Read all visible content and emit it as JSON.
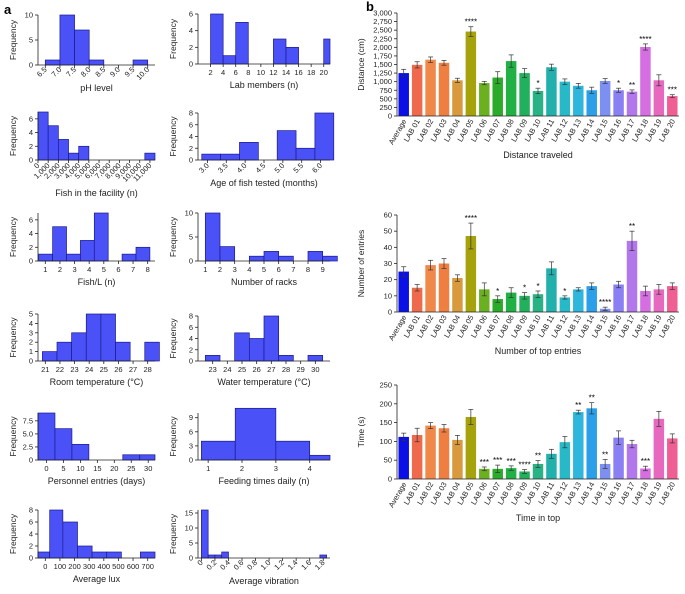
{
  "panel_labels": {
    "a": "a",
    "b": "b"
  },
  "chart_data": [
    {
      "id": "ph",
      "type": "bar",
      "title": "pH level",
      "ylabel": "Frequency",
      "xlim": [
        6.25,
        10.25
      ],
      "ylim": [
        0,
        10
      ],
      "yticks": [
        0,
        5,
        10
      ],
      "xticks": [
        6.5,
        7.0,
        7.5,
        8.0,
        8.5,
        9.0,
        9.5,
        10.0
      ],
      "xtick_labels": [
        "6.5",
        "7.0",
        "7.5",
        "8.0",
        "8.5",
        "9.0",
        "9.5",
        "10.0"
      ],
      "bins": [
        [
          6.5,
          7.0,
          1
        ],
        [
          7.0,
          7.5,
          10
        ],
        [
          7.5,
          8.0,
          7
        ],
        [
          8.0,
          8.5,
          1
        ],
        [
          8.5,
          9.0,
          0
        ],
        [
          9.0,
          9.5,
          0
        ],
        [
          9.5,
          10.0,
          1
        ]
      ]
    },
    {
      "id": "lab",
      "type": "bar",
      "title": "Lab members (n)",
      "ylabel": "Frequency",
      "xlim": [
        0,
        21
      ],
      "ylim": [
        0,
        6
      ],
      "yticks": [
        0,
        2,
        4,
        6
      ],
      "xticks": [
        2,
        4,
        6,
        8,
        10,
        12,
        14,
        16,
        18,
        20
      ],
      "xtick_labels": [
        "2",
        "4",
        "6",
        "8",
        "10",
        "12",
        "14",
        "16",
        "18",
        "20"
      ],
      "bins": [
        [
          2,
          4,
          6
        ],
        [
          4,
          6,
          1
        ],
        [
          6,
          8,
          5
        ],
        [
          8,
          10,
          0
        ],
        [
          10,
          12,
          0
        ],
        [
          12,
          14,
          3
        ],
        [
          14,
          16,
          2
        ],
        [
          16,
          18,
          0
        ],
        [
          18,
          20,
          0
        ],
        [
          20,
          21,
          3
        ]
      ]
    },
    {
      "id": "fish",
      "type": "bar",
      "title": "Fish in the facility (n)",
      "ylabel": "Frequency",
      "xlim": [
        0,
        11500
      ],
      "ylim": [
        0,
        7
      ],
      "yticks": [
        0,
        2,
        4,
        6
      ],
      "xticks": [
        0,
        1000,
        2000,
        3000,
        4000,
        5000,
        6000,
        7000,
        8000,
        9000,
        10000,
        11000
      ],
      "xtick_labels": [
        "0",
        "1,000",
        "2,000",
        "3,000",
        "4,000",
        "5,000",
        "6,000",
        "7,000",
        "8,000",
        "9,000",
        "10,000",
        "11,000"
      ],
      "bins": [
        [
          0,
          1000,
          7
        ],
        [
          1000,
          2000,
          5
        ],
        [
          2000,
          3000,
          3
        ],
        [
          3000,
          4000,
          1
        ],
        [
          4000,
          5000,
          2
        ],
        [
          5000,
          10500,
          0
        ],
        [
          10500,
          11500,
          1
        ]
      ]
    },
    {
      "id": "age",
      "type": "bar",
      "title": "Age of fish tested (months)",
      "ylabel": "Frequency",
      "xlim": [
        2.75,
        6.25
      ],
      "ylim": [
        0,
        8
      ],
      "yticks": [
        0,
        2,
        4,
        6,
        8
      ],
      "xticks": [
        3.0,
        3.5,
        4.0,
        4.5,
        5.0,
        5.5,
        6.0
      ],
      "xtick_labels": [
        "3.0",
        "3.5",
        "4.0",
        "4.5",
        "5.0",
        "5.5",
        "6.0"
      ],
      "bins": [
        [
          2.85,
          3.35,
          1
        ],
        [
          3.35,
          3.85,
          1
        ],
        [
          3.85,
          4.35,
          3
        ],
        [
          4.35,
          4.85,
          0
        ],
        [
          4.85,
          5.35,
          5
        ],
        [
          5.35,
          5.85,
          2
        ],
        [
          5.85,
          6.35,
          8
        ]
      ]
    },
    {
      "id": "fishl",
      "type": "bar",
      "title": "Fish/L (n)",
      "ylabel": "Frequency",
      "xlim": [
        0.5,
        8.5
      ],
      "ylim": [
        0,
        7
      ],
      "yticks": [
        0,
        2,
        4,
        6
      ],
      "xticks": [
        1,
        2,
        3,
        4,
        5,
        6,
        7,
        8
      ],
      "xtick_labels": [
        "1",
        "2",
        "3",
        "4",
        "5",
        "6",
        "7",
        "8"
      ],
      "bins": [
        [
          0.55,
          1.5,
          1
        ],
        [
          1.5,
          2.45,
          5
        ],
        [
          2.45,
          3.4,
          1
        ],
        [
          3.4,
          4.35,
          3
        ],
        [
          4.35,
          5.3,
          7
        ],
        [
          5.3,
          6.25,
          0
        ],
        [
          6.25,
          7.2,
          1
        ],
        [
          7.2,
          8.15,
          2
        ]
      ]
    },
    {
      "id": "racks",
      "type": "bar",
      "title": "Number of racks",
      "ylabel": "Frequency",
      "xlim": [
        0.5,
        9.5
      ],
      "ylim": [
        0,
        10
      ],
      "yticks": [
        0,
        5,
        10
      ],
      "xticks": [
        1,
        2,
        3,
        4,
        5,
        6,
        7,
        8,
        9
      ],
      "xtick_labels": [
        "1",
        "2",
        "3",
        "4",
        "5",
        "6",
        "7",
        "8",
        "9"
      ],
      "bins": [
        [
          1,
          2,
          10
        ],
        [
          2,
          3,
          3
        ],
        [
          3,
          4,
          0
        ],
        [
          4,
          5,
          1
        ],
        [
          5,
          6,
          2
        ],
        [
          6,
          7,
          1
        ],
        [
          7,
          8,
          0
        ],
        [
          8,
          9,
          2
        ],
        [
          9,
          10,
          1
        ]
      ]
    },
    {
      "id": "room",
      "type": "bar",
      "title": "Room temperature (°C)",
      "ylabel": "Frequency",
      "xlim": [
        20.5,
        28.5
      ],
      "ylim": [
        0,
        5
      ],
      "yticks": [
        0,
        1,
        2,
        3,
        4,
        5
      ],
      "xticks": [
        21,
        22,
        23,
        24,
        25,
        26,
        27,
        28
      ],
      "xtick_labels": [
        "21",
        "22",
        "23",
        "24",
        "25",
        "26",
        "27",
        "28"
      ],
      "bins": [
        [
          20.8,
          21.8,
          1
        ],
        [
          21.8,
          22.8,
          2
        ],
        [
          22.8,
          23.8,
          3
        ],
        [
          23.8,
          24.8,
          5
        ],
        [
          24.8,
          25.8,
          5
        ],
        [
          25.8,
          26.8,
          2
        ],
        [
          26.8,
          27.8,
          0
        ],
        [
          27.8,
          28.8,
          2
        ]
      ]
    },
    {
      "id": "water",
      "type": "bar",
      "title": "Water temperature (°C)",
      "ylabel": "Frequency",
      "xlim": [
        22,
        31
      ],
      "ylim": [
        0,
        8
      ],
      "yticks": [
        0,
        2,
        4,
        6,
        8
      ],
      "xticks": [
        23,
        24,
        25,
        26,
        27,
        28,
        29,
        30
      ],
      "xtick_labels": [
        "23",
        "24",
        "25",
        "26",
        "27",
        "28",
        "29",
        "30"
      ],
      "bins": [
        [
          22.5,
          23.5,
          1
        ],
        [
          23.5,
          24.5,
          0
        ],
        [
          24.5,
          25.5,
          5
        ],
        [
          25.5,
          26.5,
          4
        ],
        [
          26.5,
          27.5,
          8
        ],
        [
          27.5,
          28.5,
          1
        ],
        [
          28.5,
          29.5,
          0
        ],
        [
          29.5,
          30.5,
          1
        ]
      ]
    },
    {
      "id": "pers",
      "type": "bar",
      "title": "Personnel entries (days)",
      "ylabel": "Frequency",
      "xlim": [
        -2.5,
        32
      ],
      "ylim": [
        0,
        9
      ],
      "yticks": [
        0,
        2.5,
        5.0,
        7.5
      ],
      "ytick_labels": [
        "0",
        "2.5",
        "5.0",
        "7.5"
      ],
      "xticks": [
        0,
        5,
        10,
        15,
        20,
        25,
        30
      ],
      "xtick_labels": [
        "0",
        "5",
        "10",
        "15",
        "20",
        "25",
        "30"
      ],
      "bins": [
        [
          -2.5,
          2.5,
          9
        ],
        [
          2.5,
          7.5,
          6
        ],
        [
          7.5,
          12.5,
          3
        ],
        [
          12.5,
          22.5,
          0
        ],
        [
          22.5,
          27.5,
          1
        ],
        [
          27.5,
          32,
          1
        ]
      ]
    },
    {
      "id": "feed",
      "type": "bar",
      "title": "Feeding times daily (n)",
      "ylabel": "Frequency",
      "xlim": [
        0.7,
        4.6
      ],
      "ylim": [
        0,
        10
      ],
      "yticks": [
        0,
        3,
        6,
        9
      ],
      "xticks": [
        1,
        2,
        3,
        4
      ],
      "xtick_labels": [
        "1",
        "2",
        "3",
        "4"
      ],
      "bins": [
        [
          0.8,
          1.8,
          4
        ],
        [
          1.8,
          3.0,
          11
        ],
        [
          3.0,
          4.0,
          4
        ],
        [
          4.0,
          4.6,
          1
        ]
      ]
    },
    {
      "id": "lux",
      "type": "bar",
      "title": "Average lux",
      "ylabel": "Frequency",
      "xlim": [
        -50,
        750
      ],
      "ylim": [
        0,
        8
      ],
      "yticks": [
        0,
        2,
        4,
        6,
        8
      ],
      "xticks": [
        0,
        100,
        200,
        300,
        400,
        500,
        600,
        700
      ],
      "xtick_labels": [
        "0",
        "100",
        "200",
        "300",
        "400",
        "500",
        "600",
        "700"
      ],
      "bins": [
        [
          -50,
          30,
          1
        ],
        [
          30,
          120,
          8
        ],
        [
          120,
          220,
          6
        ],
        [
          220,
          320,
          2
        ],
        [
          320,
          420,
          1
        ],
        [
          420,
          520,
          1
        ],
        [
          520,
          650,
          0
        ],
        [
          650,
          750,
          1
        ]
      ]
    },
    {
      "id": "vib",
      "type": "bar",
      "title": "Average vibration",
      "ylabel": "Frequency",
      "xlim": [
        -0.05,
        1.9
      ],
      "ylim": [
        0,
        16
      ],
      "yticks": [
        0,
        5,
        10,
        15
      ],
      "xticks": [
        0,
        0.2,
        0.4,
        0.6,
        0.8,
        1.0,
        1.2,
        1.4,
        1.6,
        1.8
      ],
      "xtick_labels": [
        "0",
        "0.2",
        "0.4",
        "0.6",
        "0.8",
        "1.0",
        "1.2",
        "1.4",
        "1.6",
        "1.8"
      ],
      "bins": [
        [
          0,
          0.1,
          16
        ],
        [
          0.1,
          0.2,
          1
        ],
        [
          0.2,
          0.3,
          1
        ],
        [
          0.3,
          0.4,
          2
        ],
        [
          0.4,
          1.75,
          0
        ],
        [
          1.75,
          1.85,
          1
        ]
      ]
    },
    {
      "id": "dist",
      "type": "bar",
      "title": "Distance traveled",
      "ylabel": "Distance (cm)",
      "ylim": [
        0,
        3000
      ],
      "yticks": [
        0,
        250,
        500,
        750,
        1000,
        1250,
        1500,
        1750,
        2000,
        2250,
        2500,
        2750,
        3000
      ],
      "ytick_labels": [
        "0",
        "250",
        "500",
        "750",
        "1,000",
        "1,250",
        "1,500",
        "1,750",
        "2,000",
        "2,250",
        "2,500",
        "2,750",
        "3,000"
      ],
      "categories": [
        "Average",
        "LAB 01",
        "LAB 02",
        "LAB 03",
        "LAB 04",
        "LAB 05",
        "LAB 06",
        "LAB 07",
        "LAB 08",
        "LAB 09",
        "LAB 10",
        "LAB 11",
        "LAB 12",
        "LAB 13",
        "LAB 14",
        "LAB 15",
        "LAB 16",
        "LAB 17",
        "LAB 18",
        "LAB 19",
        "LAB 20"
      ],
      "values": [
        1250,
        1490,
        1640,
        1550,
        1040,
        2460,
        960,
        1120,
        1600,
        1250,
        730,
        1420,
        1000,
        880,
        750,
        1020,
        750,
        710,
        2010,
        1040,
        580
      ],
      "errors": [
        110,
        90,
        80,
        70,
        60,
        140,
        50,
        170,
        180,
        130,
        80,
        90,
        80,
        70,
        90,
        70,
        60,
        50,
        90,
        160,
        40
      ],
      "significance": [
        "",
        "",
        "",
        "",
        "",
        "****",
        "",
        "",
        "",
        "",
        "*",
        "",
        "",
        "",
        "",
        "",
        "*",
        "**",
        "****",
        "",
        "***"
      ]
    },
    {
      "id": "entries",
      "type": "bar",
      "title": "Number of top entries",
      "ylabel": "Number of entries",
      "ylim": [
        0,
        60
      ],
      "yticks": [
        0,
        10,
        20,
        30,
        40,
        50,
        60
      ],
      "ytick_labels": [
        "0",
        "10",
        "20",
        "30",
        "40",
        "50",
        "60"
      ],
      "categories": [
        "Average",
        "LAB 01",
        "LAB 02",
        "LAB 03",
        "LAB 04",
        "LAB 05",
        "LAB 06",
        "LAB 07",
        "LAB 08",
        "LAB 09",
        "LAB 10",
        "LAB 11",
        "LAB 12",
        "LAB 13",
        "LAB 14",
        "LAB 15",
        "LAB 16",
        "LAB 17",
        "LAB 18",
        "LAB 19",
        "LAB 20"
      ],
      "values": [
        25,
        15,
        29,
        30,
        21,
        47,
        14,
        8,
        12,
        10,
        11,
        27,
        9,
        14,
        16,
        2,
        17,
        44,
        13,
        14,
        16
      ],
      "errors": [
        3,
        2,
        3,
        3,
        2,
        8,
        4,
        2,
        3,
        2,
        2,
        4,
        1,
        1,
        2,
        1,
        2,
        6,
        3,
        3,
        2
      ],
      "significance": [
        "",
        "",
        "",
        "",
        "",
        "****",
        "",
        "*",
        "",
        "*",
        "*",
        "",
        "*",
        "",
        "",
        "****",
        "",
        "**",
        "",
        "",
        ""
      ]
    },
    {
      "id": "time",
      "type": "bar",
      "title": "Time in top",
      "ylabel": "Time (s)",
      "ylim": [
        0,
        250
      ],
      "yticks": [
        0,
        50,
        100,
        150,
        200,
        250
      ],
      "ytick_labels": [
        "0",
        "50",
        "100",
        "150",
        "200",
        "250"
      ],
      "categories": [
        "Average",
        "LAB 01",
        "LAB 02",
        "LAB 03",
        "LAB 04",
        "LAB 05",
        "LAB 06",
        "LAB 07",
        "LAB 08",
        "LAB 09",
        "LAB 10",
        "LAB 11",
        "LAB 12",
        "LAB 13",
        "LAB 14",
        "LAB 15",
        "LAB 16",
        "LAB 17",
        "LAB 18",
        "LAB 19",
        "LAB 20"
      ],
      "values": [
        112,
        117,
        142,
        135,
        104,
        165,
        27,
        27,
        29,
        20,
        40,
        67,
        98,
        178,
        188,
        40,
        110,
        93,
        28,
        160,
        108
      ],
      "errors": [
        10,
        18,
        8,
        10,
        12,
        20,
        5,
        10,
        6,
        5,
        9,
        12,
        15,
        5,
        15,
        12,
        18,
        10,
        6,
        20,
        12
      ],
      "significance": [
        "",
        "",
        "",
        "",
        "",
        "",
        "***",
        "***",
        "***",
        "****",
        "**",
        "",
        "",
        "**",
        "**",
        "**",
        "",
        "",
        "***",
        "",
        ""
      ]
    }
  ],
  "bar_colors": [
    "#0a10e6",
    "#ef6a4c",
    "#f0884a",
    "#ee7f41",
    "#d89a3d",
    "#a6a20c",
    "#6bb020",
    "#2aab2a",
    "#20b043",
    "#22b05c",
    "#2ab287",
    "#22b0ad",
    "#27b9c8",
    "#2fb6dd",
    "#2ba0e8",
    "#7d8ff0",
    "#8a7ff3",
    "#b277ea",
    "#d56ee0",
    "#e768bf",
    "#ef5f93"
  ],
  "hist_color": "#4a52f7"
}
